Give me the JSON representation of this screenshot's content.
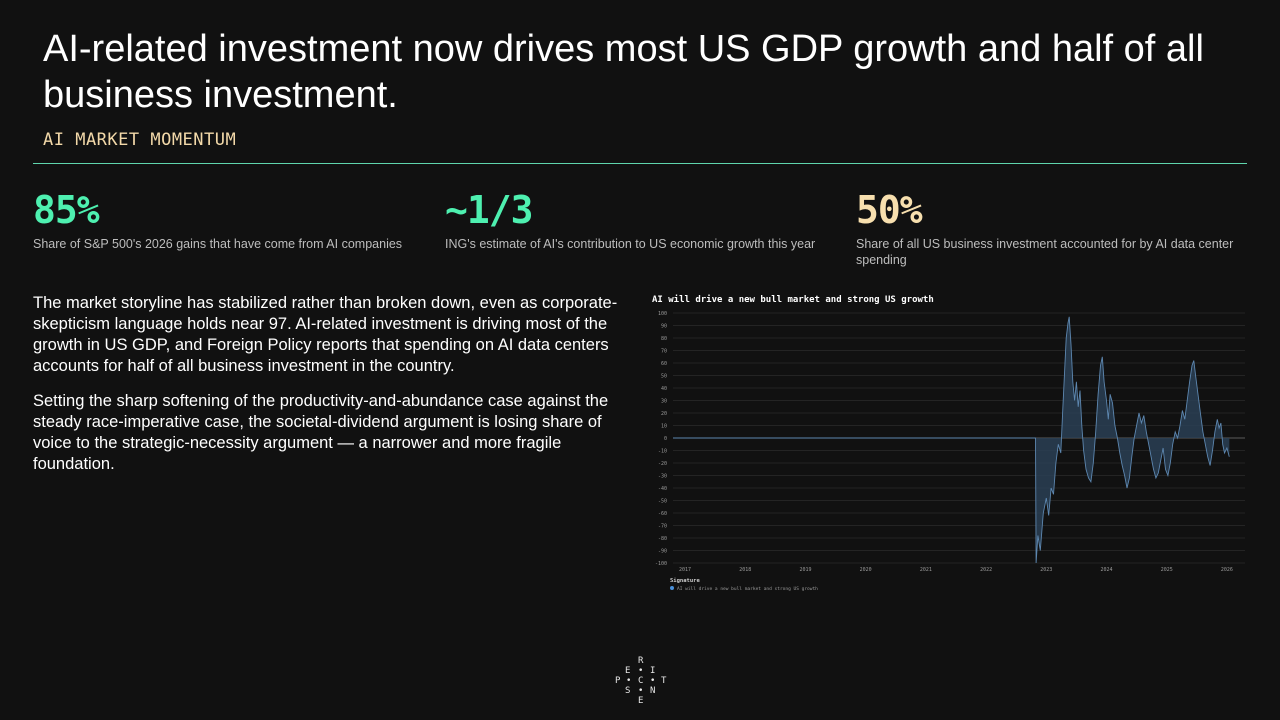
{
  "header": {
    "title": "AI-related investment now drives most US GDP growth and half of all business investment.",
    "kicker": "AI MARKET MOMENTUM"
  },
  "stats": [
    {
      "value": "85%",
      "desc": "Share of S&P 500's 2026 gains that have come from AI companies",
      "color": "#4ef0b0"
    },
    {
      "value": "~1/3",
      "desc": "ING's estimate of AI's contribution to US economic growth this year",
      "color": "#4ef0b0"
    },
    {
      "value": "50%",
      "desc": "Share of all US business investment accounted for by AI data center spending",
      "color": "#f7dfae"
    }
  ],
  "body": {
    "p1": "The market storyline has stabilized rather than broken down, even as corporate-skepticism language holds near 97. AI-related investment is driving most of the growth in US GDP, and Foreign Policy reports that spending on AI data centers accounts for half of all business investment in the country.",
    "p2": "Setting the sharp softening of the productivity-and-abundance case against the steady race-imperative case, the societal-dividend argument is losing share of voice to the strategic-necessity argument — a narrower and more fragile foundation."
  },
  "chart_data": {
    "type": "area",
    "title": "AI will drive a new bull market and strong US growth",
    "legend_title": "Signature",
    "series": [
      {
        "name": "AI will drive a new bull market and strong US growth",
        "color": "#4a90d9",
        "points": [
          [
            2016.8,
            0
          ],
          [
            2022.82,
            0
          ],
          [
            2022.83,
            -100
          ],
          [
            2022.86,
            -78
          ],
          [
            2022.9,
            -90
          ],
          [
            2022.95,
            -60
          ],
          [
            2023.0,
            -48
          ],
          [
            2023.04,
            -62
          ],
          [
            2023.08,
            -40
          ],
          [
            2023.12,
            -45
          ],
          [
            2023.16,
            -20
          ],
          [
            2023.2,
            -5
          ],
          [
            2023.24,
            -12
          ],
          [
            2023.27,
            20
          ],
          [
            2023.3,
            50
          ],
          [
            2023.33,
            80
          ],
          [
            2023.36,
            92
          ],
          [
            2023.38,
            97
          ],
          [
            2023.41,
            75
          ],
          [
            2023.44,
            45
          ],
          [
            2023.47,
            30
          ],
          [
            2023.5,
            45
          ],
          [
            2023.53,
            25
          ],
          [
            2023.56,
            38
          ],
          [
            2023.59,
            10
          ],
          [
            2023.62,
            -10
          ],
          [
            2023.66,
            -25
          ],
          [
            2023.7,
            -32
          ],
          [
            2023.74,
            -35
          ],
          [
            2023.78,
            -20
          ],
          [
            2023.82,
            5
          ],
          [
            2023.86,
            35
          ],
          [
            2023.9,
            58
          ],
          [
            2023.93,
            65
          ],
          [
            2023.96,
            45
          ],
          [
            2024.0,
            30
          ],
          [
            2024.03,
            15
          ],
          [
            2024.06,
            35
          ],
          [
            2024.1,
            28
          ],
          [
            2024.14,
            10
          ],
          [
            2024.18,
            0
          ],
          [
            2024.22,
            -12
          ],
          [
            2024.26,
            -22
          ],
          [
            2024.3,
            -30
          ],
          [
            2024.34,
            -40
          ],
          [
            2024.38,
            -32
          ],
          [
            2024.42,
            -15
          ],
          [
            2024.46,
            0
          ],
          [
            2024.5,
            10
          ],
          [
            2024.54,
            20
          ],
          [
            2024.58,
            12
          ],
          [
            2024.62,
            18
          ],
          [
            2024.66,
            5
          ],
          [
            2024.7,
            -5
          ],
          [
            2024.74,
            -15
          ],
          [
            2024.78,
            -25
          ],
          [
            2024.82,
            -32
          ],
          [
            2024.86,
            -28
          ],
          [
            2024.9,
            -18
          ],
          [
            2024.94,
            -8
          ],
          [
            2024.98,
            -25
          ],
          [
            2025.02,
            -30
          ],
          [
            2025.06,
            -20
          ],
          [
            2025.1,
            -5
          ],
          [
            2025.14,
            5
          ],
          [
            2025.18,
            0
          ],
          [
            2025.22,
            10
          ],
          [
            2025.26,
            22
          ],
          [
            2025.3,
            15
          ],
          [
            2025.34,
            30
          ],
          [
            2025.38,
            45
          ],
          [
            2025.42,
            58
          ],
          [
            2025.45,
            62
          ],
          [
            2025.48,
            50
          ],
          [
            2025.52,
            35
          ],
          [
            2025.56,
            20
          ],
          [
            2025.6,
            5
          ],
          [
            2025.64,
            -5
          ],
          [
            2025.68,
            -15
          ],
          [
            2025.72,
            -22
          ],
          [
            2025.76,
            -10
          ],
          [
            2025.8,
            5
          ],
          [
            2025.84,
            15
          ],
          [
            2025.87,
            8
          ],
          [
            2025.9,
            12
          ],
          [
            2025.93,
            -5
          ],
          [
            2025.96,
            -12
          ],
          [
            2026.0,
            -8
          ],
          [
            2026.04,
            -15
          ]
        ]
      }
    ],
    "x_ticks": [
      "2017",
      "2018",
      "2019",
      "2020",
      "2021",
      "2022",
      "2023",
      "2024",
      "2025",
      "2026"
    ],
    "y_ticks": [
      "100",
      "90",
      "80",
      "70",
      "60",
      "50",
      "40",
      "30",
      "20",
      "10",
      "0",
      "-10",
      "-20",
      "-30",
      "-40",
      "-50",
      "-60",
      "-70",
      "-80",
      "-90",
      "-100"
    ],
    "xlim": [
      2016.8,
      2026.3
    ],
    "ylim": [
      -100,
      100
    ],
    "grid": true,
    "legend_position": "bottom-left"
  },
  "logo": {
    "letters": [
      "R",
      "E",
      "I",
      "P",
      "C",
      "T",
      "S",
      "N",
      "E"
    ]
  }
}
